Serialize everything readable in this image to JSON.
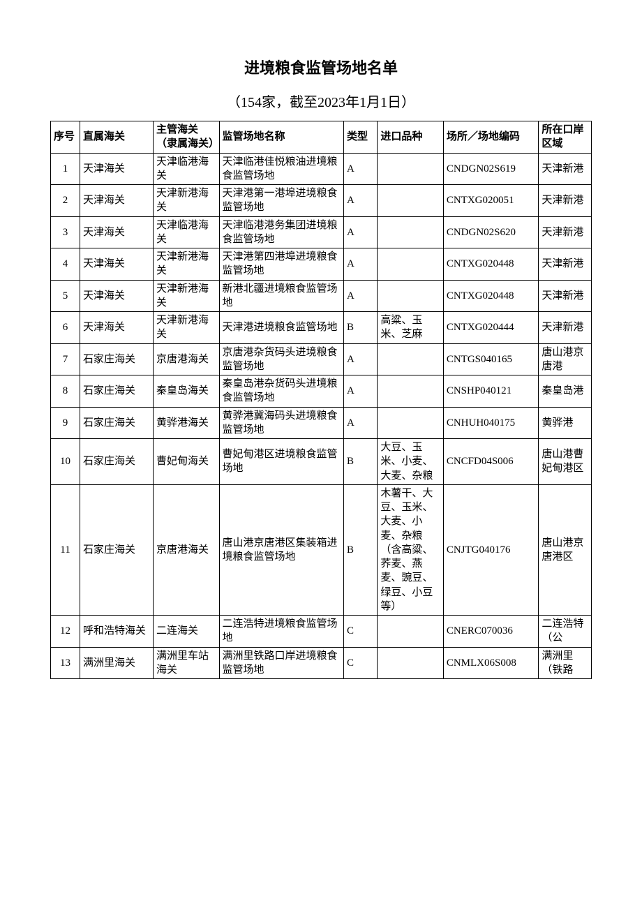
{
  "title": "进境粮食监管场地名单",
  "subtitle": "（154家，截至2023年1月1日）",
  "table": {
    "columns": [
      "序号",
      "直属海关",
      "主管海关（隶属海关）",
      "监管场地名称",
      "类型",
      "进口品种",
      "场所／场地编码",
      "所在口岸区域"
    ],
    "rows": [
      [
        "1",
        "天津海关",
        "天津临港海关",
        "天津临港佳悦粮油进境粮食监管场地",
        "A",
        "",
        "CNDGN02S619",
        "天津新港"
      ],
      [
        "2",
        "天津海关",
        "天津新港海关",
        "天津港第一港埠进境粮食监管场地",
        "A",
        "",
        "CNTXG020051",
        "天津新港"
      ],
      [
        "3",
        "天津海关",
        "天津临港海关",
        "天津临港港务集团进境粮食监管场地",
        "A",
        "",
        "CNDGN02S620",
        "天津新港"
      ],
      [
        "4",
        "天津海关",
        "天津新港海关",
        "天津港第四港埠进境粮食监管场地",
        "A",
        "",
        "CNTXG020448",
        "天津新港"
      ],
      [
        "5",
        "天津海关",
        "天津新港海关",
        "新港北疆进境粮食监管场地",
        "A",
        "",
        "CNTXG020448",
        "天津新港"
      ],
      [
        "6",
        "天津海关",
        "天津新港海关",
        "天津港进境粮食监管场地",
        "B",
        "高粱、玉米、芝麻",
        "CNTXG020444",
        "天津新港"
      ],
      [
        "7",
        "石家庄海关",
        "京唐港海关",
        "京唐港杂货码头进境粮食监管场地",
        "A",
        "",
        "CNTGS040165",
        "唐山港京唐港"
      ],
      [
        "8",
        "石家庄海关",
        "秦皇岛海关",
        "秦皇岛港杂货码头进境粮食监管场地",
        "A",
        "",
        "CNSHP040121",
        "秦皇岛港"
      ],
      [
        "9",
        "石家庄海关",
        "黄骅港海关",
        "黄骅港冀海码头进境粮食监管场地",
        "A",
        "",
        "CNHUH040175",
        "黄骅港"
      ],
      [
        "10",
        "石家庄海关",
        "曹妃甸海关",
        "曹妃甸港区进境粮食监管场地",
        "B",
        "大豆、玉米、小麦、大麦、杂粮",
        "CNCFD04S006",
        "唐山港曹妃甸港区"
      ],
      [
        "11",
        "石家庄海关",
        "京唐港海关",
        "唐山港京唐港区集装箱进境粮食监管场地",
        "B",
        "木薯干、大豆、玉米、大麦、小麦、杂粮（含高粱、荞麦、燕麦、豌豆、绿豆、小豆等）",
        "CNJTG040176",
        "唐山港京唐港区"
      ],
      [
        "12",
        "呼和浩特海关",
        "二连海关",
        "二连浩特进境粮食监管场地",
        "C",
        "",
        "CNERC070036",
        "二连浩特（公"
      ],
      [
        "13",
        "满洲里海关",
        "满洲里车站海关",
        "满洲里铁路口岸进境粮食监管场地",
        "C",
        "",
        "CNMLX06S008",
        "满洲里（铁路"
      ]
    ]
  }
}
